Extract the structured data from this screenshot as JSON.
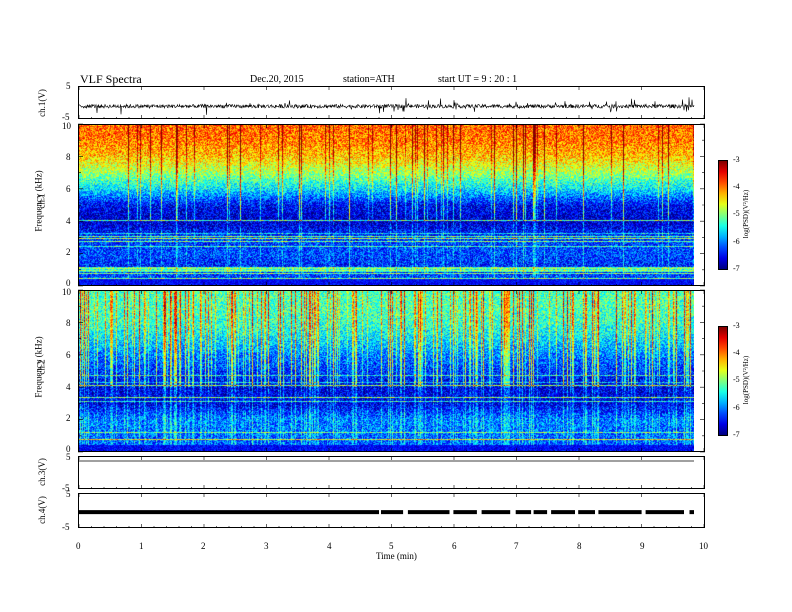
{
  "header": {
    "title": "VLF  Spectra",
    "date": "Dec.20, 2015",
    "station": "station=ATH",
    "start": "start  UT  =    9  : 20 : 1"
  },
  "chart_data": [
    {
      "type": "line",
      "name": "ch1-waveform",
      "ylabel": "ch.1(V)",
      "ylim": [
        -5,
        5
      ],
      "yticks": [
        "5",
        "-5"
      ],
      "xlim": [
        0,
        10
      ],
      "baseline": -1.2,
      "noise_amplitude": 0.6,
      "spike_amplitude": 2.5
    },
    {
      "type": "heatmap",
      "name": "ch1-spectrogram",
      "ylabel": "Frequency  (kHz)",
      "chlabel": "ch.1",
      "ylim": [
        0,
        10
      ],
      "yticks": [
        "10",
        "8",
        "6",
        "4",
        "2",
        "0"
      ],
      "xlim": [
        0,
        9.8
      ],
      "colorbar": {
        "label": "log(PSD)(V²/Hz)",
        "range": [
          -7,
          -3
        ],
        "ticks": [
          "-3",
          "-4",
          "-5",
          "-6",
          "-7"
        ]
      },
      "profile_khz": [
        0,
        1,
        2,
        3,
        4,
        5,
        6,
        7,
        8,
        9,
        10
      ],
      "profile_logpsd": [
        -6.0,
        -6.4,
        -6.2,
        -6.3,
        -6.7,
        -6.5,
        -5.6,
        -4.9,
        -4.3,
        -4.0,
        -3.9
      ]
    },
    {
      "type": "heatmap",
      "name": "ch2-spectrogram",
      "ylabel": "Frequency  (kHz)",
      "chlabel": "ch.2",
      "ylim": [
        0,
        10
      ],
      "yticks": [
        "10",
        "8",
        "6",
        "4",
        "2",
        "0"
      ],
      "xlim": [
        0,
        9.8
      ],
      "colorbar": {
        "label": "log(PSD)(V²/Hz)",
        "range": [
          -7,
          -3
        ],
        "ticks": [
          "-3",
          "-4",
          "-5",
          "-6",
          "-7"
        ]
      },
      "profile_khz": [
        0,
        1,
        2,
        3,
        4,
        5,
        6,
        7,
        8,
        9,
        10
      ],
      "profile_logpsd": [
        -6.2,
        -6.1,
        -6.0,
        -6.6,
        -6.6,
        -6.3,
        -6.0,
        -5.6,
        -5.3,
        -5.2,
        -5.2
      ]
    },
    {
      "type": "line",
      "name": "ch3-waveform",
      "ylabel": "ch.3(V)",
      "ylim": [
        -5,
        5
      ],
      "yticks": [
        "5",
        "-5"
      ],
      "xlim": [
        0,
        10
      ],
      "baseline": 5
    },
    {
      "type": "line",
      "name": "ch4-waveform",
      "ylabel": "ch.4(V)",
      "ylim": [
        -5,
        5
      ],
      "yticks": [
        "5",
        "-5"
      ],
      "xlim": [
        0,
        10
      ],
      "baseline": -0.5
    }
  ],
  "xaxis": {
    "label": "Time  (min)",
    "ticks": [
      "0",
      "1",
      "2",
      "3",
      "4",
      "5",
      "6",
      "7",
      "8",
      "9",
      "10"
    ]
  }
}
